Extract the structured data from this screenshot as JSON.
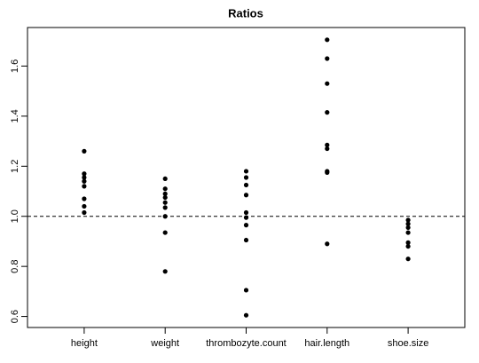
{
  "chart_data": {
    "type": "strip",
    "title": "Ratios",
    "categories": [
      "height",
      "weight",
      "thrombozyte.count",
      "hair.length",
      "shoe.size"
    ],
    "values": [
      [
        1.26,
        1.17,
        1.155,
        1.14,
        1.12,
        1.07,
        1.04,
        1.015
      ],
      [
        1.15,
        1.11,
        1.09,
        1.075,
        1.055,
        1.035,
        1.0,
        0.935,
        0.78
      ],
      [
        1.18,
        1.155,
        1.125,
        1.085,
        1.015,
        0.995,
        0.965,
        0.905,
        0.705,
        0.605
      ],
      [
        1.705,
        1.63,
        1.53,
        1.415,
        1.285,
        1.27,
        1.18,
        1.175,
        0.89
      ],
      [
        0.985,
        0.97,
        0.955,
        0.935,
        0.895,
        0.88,
        0.83
      ]
    ],
    "color": "#000000",
    "hline": 1,
    "ylim": [
      0.556,
      1.754
    ],
    "yticks": [
      0.6,
      0.8,
      {
        "value": 1,
        "label": "1.0"
      },
      1.2,
      1.4,
      1.6
    ]
  }
}
